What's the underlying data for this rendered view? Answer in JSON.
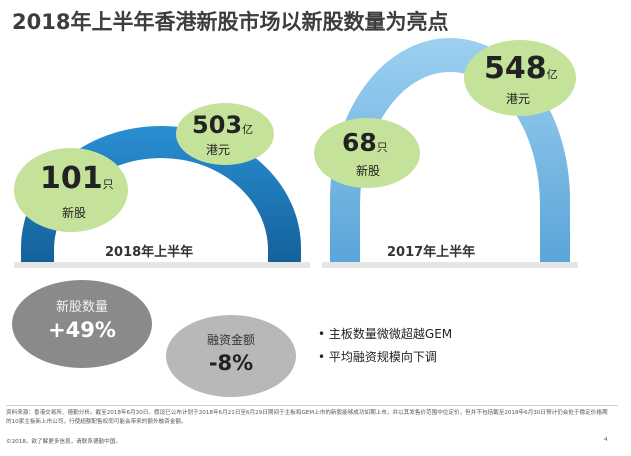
{
  "title": "2018年上半年香港新股市场以新股数量为亮点",
  "h1_2018": {
    "period_label": "2018年上半年",
    "ipo_count": "101",
    "ipo_count_unit": "只",
    "ipo_count_label": "新股",
    "funds_raised": "503",
    "funds_raised_unit": "亿",
    "funds_raised_label": "港元"
  },
  "h1_2017": {
    "period_label": "2017年上半年",
    "ipo_count": "68",
    "ipo_count_unit": "只",
    "ipo_count_label": "新股",
    "funds_raised": "548",
    "funds_raised_unit": "亿",
    "funds_raised_label": "港元"
  },
  "change": {
    "ipo_label": "新股数量",
    "ipo_value": "+49%",
    "funds_label": "融资金额",
    "funds_value": "-8%"
  },
  "bullets": [
    "主板数量微微超越GEM",
    "平均融资规模向下调"
  ],
  "footnote": "资料来源：香港交易所、德勤分析。截至2018年6月30日。假设已公布计划于2018年6月21日至6月29日期间于主板和GEM上市的新股能够成功如期上市，并以其发售价范围中位定价，但并不包括截至2018年6月30日预计仍会处于稳定价格期的10家主板新上市公司，行使超额配售权而可能会带来的额外融资金额。",
  "copyright": "©2018。欲了解更多信息，请联系德勤中国。",
  "page_number": "4",
  "colors": {
    "arch_dark_blue": "#1c7fc4",
    "arch_light_blue": "#7cbce6",
    "bubble_green": "#c4e29a",
    "circle_dark_grey": "#8a8a8a",
    "circle_light_grey": "#b8b8b8"
  }
}
